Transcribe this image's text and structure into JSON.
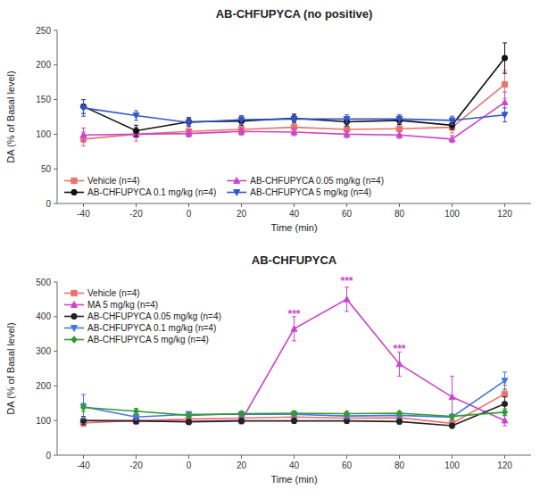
{
  "chart_data": [
    {
      "type": "line",
      "title": "AB-CHFUPYCA (no positive)",
      "x_label": "Time (min)",
      "y_label": "DA (% of Basal level)",
      "x": [
        -40,
        -20,
        0,
        20,
        40,
        60,
        80,
        100,
        120
      ],
      "xlim": [
        -50,
        130
      ],
      "xticks": [
        -40,
        -20,
        0,
        20,
        40,
        60,
        80,
        100,
        120
      ],
      "ylim": [
        0,
        250
      ],
      "yticks": [
        0,
        50,
        100,
        150,
        200,
        250
      ],
      "legend": "lower left",
      "series": [
        {
          "name": "Vehicle (n=4)",
          "color": "#E8736C",
          "marker": "square",
          "values": [
            93,
            100,
            104,
            107,
            110,
            107,
            108,
            110,
            172
          ],
          "errors": [
            10,
            10,
            8,
            8,
            8,
            8,
            8,
            8,
            20
          ]
        },
        {
          "name": "AB-CHFUPYCA 0.05 mg/kg (n=4)",
          "color": "#CC44CC",
          "marker": "triangle-up",
          "values": [
            99,
            100,
            101,
            104,
            103,
            100,
            99,
            93,
            146
          ],
          "errors": [
            10,
            5,
            5,
            5,
            5,
            5,
            5,
            5,
            15
          ]
        },
        {
          "name": "AB-CHFUPYCA 0.1 mg/kg (n=4)",
          "color": "#111111",
          "marker": "circle",
          "values": [
            140,
            105,
            118,
            119,
            123,
            118,
            120,
            113,
            210
          ],
          "errors": [
            10,
            8,
            6,
            6,
            6,
            6,
            6,
            6,
            22
          ]
        },
        {
          "name": "AB-CHFUPYCA 5 mg/kg (n=4)",
          "color": "#3355CC",
          "marker": "triangle-down",
          "values": [
            138,
            127,
            117,
            121,
            122,
            122,
            122,
            120,
            128
          ],
          "errors": [
            12,
            7,
            6,
            6,
            6,
            6,
            6,
            6,
            10
          ]
        }
      ]
    },
    {
      "type": "line",
      "title": "AB-CHFUPYCA",
      "x_label": "Time (min)",
      "y_label": "DA (% of Basal level)",
      "x": [
        -40,
        -20,
        0,
        20,
        40,
        60,
        80,
        100,
        120
      ],
      "xlim": [
        -50,
        130
      ],
      "xticks": [
        -40,
        -20,
        0,
        20,
        40,
        60,
        80,
        100,
        120
      ],
      "ylim": [
        0,
        500
      ],
      "yticks": [
        0,
        100,
        200,
        300,
        400,
        500
      ],
      "legend": "upper left",
      "series": [
        {
          "name": "Vehicle (n=4)",
          "color": "#E8736C",
          "marker": "square",
          "values": [
            93,
            100,
            104,
            107,
            110,
            107,
            108,
            92,
            177
          ],
          "errors": [
            10,
            10,
            8,
            8,
            8,
            8,
            8,
            8,
            25
          ]
        },
        {
          "name": "MA 5 mg/kg (n=4)",
          "color": "#CC44CC",
          "marker": "triangle-up",
          "values": [
            100,
            99,
            98,
            100,
            365,
            450,
            263,
            168,
            100
          ],
          "errors": [
            12,
            10,
            10,
            10,
            35,
            35,
            35,
            60,
            15
          ]
        },
        {
          "name": "AB-CHFUPYCA 0.05 mg/kg (n=4)",
          "color": "#222222",
          "marker": "circle",
          "values": [
            100,
            99,
            96,
            99,
            99,
            99,
            97,
            85,
            148
          ],
          "errors": [
            12,
            8,
            7,
            7,
            7,
            7,
            7,
            7,
            20
          ]
        },
        {
          "name": "AB-CHFUPYCA 0.1 mg/kg (n=4)",
          "color": "#4477DD",
          "marker": "triangle-down",
          "values": [
            140,
            110,
            118,
            118,
            118,
            113,
            115,
            110,
            215
          ],
          "errors": [
            35,
            8,
            8,
            8,
            8,
            8,
            8,
            8,
            25
          ]
        },
        {
          "name": "AB-CHFUPYCA 5 mg/kg (n=4)",
          "color": "#339933",
          "marker": "diamond",
          "values": [
            138,
            127,
            115,
            120,
            121,
            120,
            121,
            112,
            124
          ],
          "errors": [
            12,
            8,
            6,
            6,
            6,
            6,
            6,
            6,
            10
          ]
        }
      ],
      "annotations": [
        {
          "text": "***",
          "x": 40,
          "y": 395,
          "color": "#CC44CC"
        },
        {
          "text": "***",
          "x": 60,
          "y": 490,
          "color": "#CC44CC"
        },
        {
          "text": "***",
          "x": 80,
          "y": 295,
          "color": "#CC44CC"
        }
      ]
    }
  ]
}
